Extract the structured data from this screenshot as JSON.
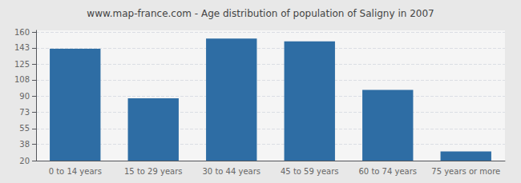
{
  "chart_data": {
    "type": "bar",
    "title": "www.map-france.com - Age distribution of population of Saligny in 2007",
    "categories": [
      "0 to 14 years",
      "15 to 29 years",
      "30 to 44 years",
      "45 to 59 years",
      "60 to 74 years",
      "75 years or more"
    ],
    "values": [
      142,
      88,
      153,
      150,
      97,
      30
    ],
    "color": "#2e6da4",
    "ylim": [
      20,
      162
    ],
    "yticks": [
      20,
      38,
      55,
      73,
      90,
      108,
      125,
      143,
      160
    ],
    "grid": true
  }
}
